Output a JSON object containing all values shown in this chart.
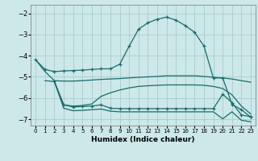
{
  "xlabel": "Humidex (Indice chaleur)",
  "bg_color": "#cce8e8",
  "grid_color": "#aacccc",
  "line_color": "#1a6b6b",
  "xlim": [
    -0.5,
    23.5
  ],
  "ylim": [
    -7.3,
    -1.6
  ],
  "yticks": [
    -2,
    -3,
    -4,
    -5,
    -6,
    -7
  ],
  "xticks": [
    0,
    1,
    2,
    3,
    4,
    5,
    6,
    7,
    8,
    9,
    10,
    11,
    12,
    13,
    14,
    15,
    16,
    17,
    18,
    19,
    20,
    21,
    22,
    23
  ],
  "line1_x": [
    0,
    1,
    2,
    3,
    4,
    5,
    6,
    7,
    8,
    9,
    10,
    11,
    12,
    13,
    14,
    15,
    16,
    17,
    18,
    19,
    20,
    21,
    22,
    23
  ],
  "line1_y": [
    -4.2,
    -4.65,
    -4.75,
    -4.72,
    -4.7,
    -4.68,
    -4.65,
    -4.62,
    -4.62,
    -4.4,
    -3.55,
    -2.75,
    -2.45,
    -2.28,
    -2.18,
    -2.32,
    -2.58,
    -2.9,
    -3.55,
    -5.05,
    -5.05,
    -6.3,
    -6.55,
    -6.9
  ],
  "line2_x": [
    0,
    1,
    2,
    3,
    4,
    5,
    6,
    7,
    8,
    9,
    10,
    11,
    12,
    13,
    14,
    15,
    16,
    17,
    18,
    19,
    20,
    21,
    22,
    23
  ],
  "line2_y": [
    -4.2,
    -4.75,
    -5.18,
    -5.2,
    -5.2,
    -5.18,
    -5.15,
    -5.12,
    -5.1,
    -5.08,
    -5.05,
    -5.02,
    -5.0,
    -4.98,
    -4.95,
    -4.95,
    -4.95,
    -4.95,
    -4.98,
    -5.02,
    -5.05,
    -5.1,
    -5.18,
    -5.25
  ],
  "line3_x": [
    1,
    2,
    3,
    4,
    5,
    6,
    7,
    8,
    9,
    10,
    11,
    12,
    13,
    14,
    15,
    16,
    17,
    18,
    19,
    20,
    21,
    22,
    23
  ],
  "line3_y": [
    -5.18,
    -5.22,
    -6.32,
    -6.38,
    -6.35,
    -6.28,
    -5.92,
    -5.75,
    -5.62,
    -5.52,
    -5.45,
    -5.42,
    -5.4,
    -5.38,
    -5.38,
    -5.38,
    -5.38,
    -5.4,
    -5.45,
    -5.55,
    -5.85,
    -6.38,
    -6.75
  ],
  "line4_x": [
    2,
    3,
    4,
    5,
    6,
    7,
    8,
    9,
    10,
    11,
    12,
    13,
    14,
    15,
    16,
    17,
    18,
    19,
    20,
    21,
    22,
    23
  ],
  "line4_y": [
    -5.22,
    -6.32,
    -6.42,
    -6.4,
    -6.38,
    -6.32,
    -6.48,
    -6.5,
    -6.5,
    -6.5,
    -6.5,
    -6.5,
    -6.5,
    -6.5,
    -6.5,
    -6.5,
    -6.5,
    -6.5,
    -5.82,
    -6.22,
    -6.8,
    -6.88
  ],
  "line5_x": [
    2,
    3,
    4,
    5,
    6,
    7,
    8,
    9,
    10,
    11,
    12,
    13,
    14,
    15,
    16,
    17,
    18,
    19,
    20,
    21,
    22,
    23
  ],
  "line5_y": [
    -5.22,
    -6.48,
    -6.6,
    -6.58,
    -6.55,
    -6.52,
    -6.62,
    -6.65,
    -6.65,
    -6.65,
    -6.65,
    -6.65,
    -6.65,
    -6.65,
    -6.65,
    -6.65,
    -6.65,
    -6.65,
    -6.98,
    -6.65,
    -7.05,
    -7.12
  ]
}
